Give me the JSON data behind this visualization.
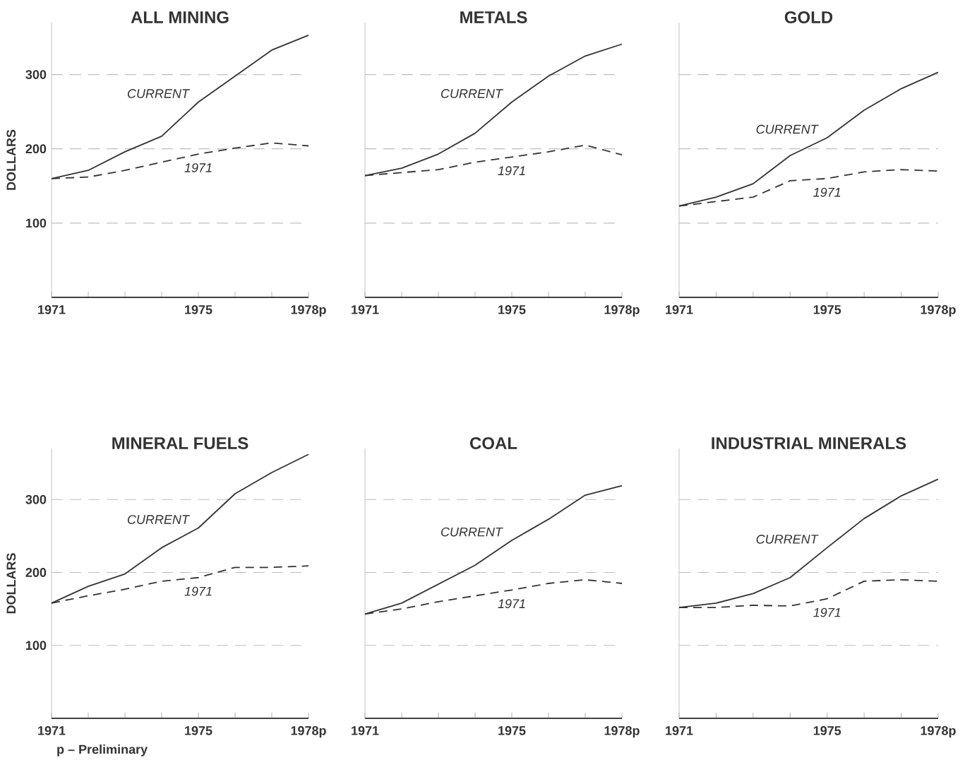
{
  "chart_data": [
    {
      "type": "line",
      "title": "ALL MINING",
      "ylabel": "DOLLARS",
      "x": [
        1971,
        1972,
        1973,
        1974,
        1975,
        1976,
        1977,
        1978
      ],
      "xlim": [
        1971,
        1978
      ],
      "xticks": [
        1971,
        {
          "value": 1972,
          "label": null
        },
        {
          "value": 1973,
          "label": null
        },
        {
          "value": 1974,
          "label": null
        },
        1975,
        {
          "value": 1976,
          "label": null
        },
        {
          "value": 1977,
          "label": null
        },
        {
          "value": 1978,
          "label": "1978p"
        }
      ],
      "ylim": [
        0,
        370
      ],
      "yticks": [
        100,
        200,
        300
      ],
      "grid": "y",
      "marker": "none",
      "series": [
        {
          "name": "CURRENT",
          "color": "#333333",
          "line_style": "solid",
          "values": [
            160,
            171,
            196,
            217,
            263,
            298,
            333,
            353
          ]
        },
        {
          "name": "1971",
          "color": "#333333",
          "line_style": "dashed",
          "values": [
            160,
            162,
            171,
            182,
            193,
            201,
            208,
            204
          ]
        }
      ]
    },
    {
      "type": "line",
      "title": "METALS",
      "x": [
        1971,
        1972,
        1973,
        1974,
        1975,
        1976,
        1977,
        1978
      ],
      "xlim": [
        1971,
        1978
      ],
      "xticks": [
        1971,
        {
          "value": 1972,
          "label": null
        },
        {
          "value": 1973,
          "label": null
        },
        {
          "value": 1974,
          "label": null
        },
        1975,
        {
          "value": 1976,
          "label": null
        },
        {
          "value": 1977,
          "label": null
        },
        {
          "value": 1978,
          "label": "1978p"
        }
      ],
      "ylim": [
        0,
        370
      ],
      "yticks": [
        100,
        200,
        300
      ],
      "grid": "y",
      "marker": "none",
      "tick_labels": "x",
      "series": [
        {
          "name": "CURRENT",
          "color": "#333333",
          "line_style": "solid",
          "values": [
            164,
            174,
            193,
            221,
            263,
            298,
            325,
            341
          ]
        },
        {
          "name": "1971",
          "color": "#333333",
          "line_style": "dashed",
          "values": [
            164,
            168,
            172,
            182,
            189,
            196,
            205,
            192
          ]
        }
      ]
    },
    {
      "type": "line",
      "title": "GOLD",
      "x": [
        1971,
        1972,
        1973,
        1974,
        1975,
        1976,
        1977,
        1978
      ],
      "xlim": [
        1971,
        1978
      ],
      "xticks": [
        1971,
        {
          "value": 1972,
          "label": null
        },
        {
          "value": 1973,
          "label": null
        },
        {
          "value": 1974,
          "label": null
        },
        1975,
        {
          "value": 1976,
          "label": null
        },
        {
          "value": 1977,
          "label": null
        },
        {
          "value": 1978,
          "label": "1978p"
        }
      ],
      "ylim": [
        0,
        370
      ],
      "yticks": [
        100,
        200,
        300
      ],
      "grid": "y",
      "marker": "none",
      "tick_labels": "x",
      "series": [
        {
          "name": "CURRENT",
          "color": "#333333",
          "line_style": "solid",
          "values": [
            123,
            135,
            153,
            191,
            215,
            252,
            281,
            303
          ]
        },
        {
          "name": "1971",
          "color": "#333333",
          "line_style": "dashed",
          "values": [
            123,
            129,
            135,
            157,
            160,
            169,
            172,
            170
          ]
        }
      ]
    },
    {
      "type": "line",
      "title": "MINERAL FUELS",
      "ylabel": "DOLLARS",
      "x": [
        1971,
        1972,
        1973,
        1974,
        1975,
        1976,
        1977,
        1978
      ],
      "xlim": [
        1971,
        1978
      ],
      "xticks": [
        1971,
        {
          "value": 1972,
          "label": null
        },
        {
          "value": 1973,
          "label": null
        },
        {
          "value": 1974,
          "label": null
        },
        1975,
        {
          "value": 1976,
          "label": null
        },
        {
          "value": 1977,
          "label": null
        },
        {
          "value": 1978,
          "label": "1978p"
        }
      ],
      "ylim": [
        0,
        370
      ],
      "yticks": [
        100,
        200,
        300
      ],
      "grid": "y",
      "marker": "none",
      "annotations": [
        "p – Preliminary"
      ],
      "series": [
        {
          "name": "CURRENT",
          "color": "#333333",
          "line_style": "solid",
          "values": [
            158,
            181,
            198,
            234,
            261,
            308,
            337,
            362
          ]
        },
        {
          "name": "1971",
          "color": "#333333",
          "line_style": "dashed",
          "values": [
            158,
            168,
            177,
            188,
            193,
            207,
            207,
            209
          ]
        }
      ]
    },
    {
      "type": "line",
      "title": "COAL",
      "x": [
        1971,
        1972,
        1973,
        1974,
        1975,
        1976,
        1977,
        1978
      ],
      "xlim": [
        1971,
        1978
      ],
      "xticks": [
        1971,
        {
          "value": 1972,
          "label": null
        },
        {
          "value": 1973,
          "label": null
        },
        {
          "value": 1974,
          "label": null
        },
        1975,
        {
          "value": 1976,
          "label": null
        },
        {
          "value": 1977,
          "label": null
        },
        {
          "value": 1978,
          "label": "1978p"
        }
      ],
      "ylim": [
        0,
        370
      ],
      "yticks": [
        100,
        200,
        300
      ],
      "grid": "y",
      "marker": "none",
      "tick_labels": "x",
      "series": [
        {
          "name": "CURRENT",
          "color": "#333333",
          "line_style": "solid",
          "values": [
            143,
            158,
            184,
            210,
            244,
            273,
            306,
            319
          ]
        },
        {
          "name": "1971",
          "color": "#333333",
          "line_style": "dashed",
          "values": [
            143,
            150,
            160,
            168,
            176,
            185,
            190,
            185
          ]
        }
      ]
    },
    {
      "type": "line",
      "title": "INDUSTRIAL MINERALS",
      "x": [
        1971,
        1972,
        1973,
        1974,
        1975,
        1976,
        1977,
        1978
      ],
      "xlim": [
        1971,
        1978
      ],
      "xticks": [
        1971,
        {
          "value": 1972,
          "label": null
        },
        {
          "value": 1973,
          "label": null
        },
        {
          "value": 1974,
          "label": null
        },
        1975,
        {
          "value": 1976,
          "label": null
        },
        {
          "value": 1977,
          "label": null
        },
        {
          "value": 1978,
          "label": "1978p"
        }
      ],
      "ylim": [
        0,
        370
      ],
      "yticks": [
        100,
        200,
        300
      ],
      "grid": "y",
      "marker": "none",
      "tick_labels": "x",
      "series": [
        {
          "name": "CURRENT",
          "color": "#333333",
          "line_style": "solid",
          "values": [
            152,
            158,
            171,
            193,
            234,
            274,
            305,
            328
          ]
        },
        {
          "name": "1971",
          "color": "#333333",
          "line_style": "dashed",
          "values": [
            152,
            152,
            155,
            154,
            164,
            188,
            190,
            188
          ]
        }
      ]
    }
  ]
}
